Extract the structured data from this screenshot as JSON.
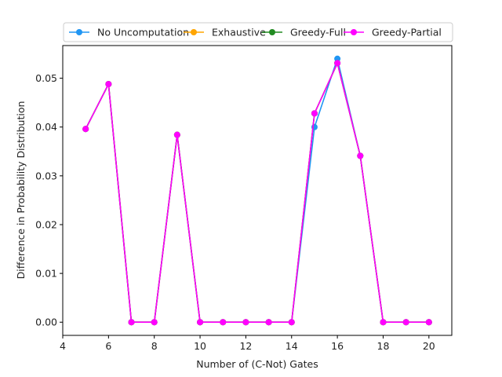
{
  "chart_data": {
    "type": "line",
    "xlabel": "Number of (C-Not) Gates",
    "ylabel": "Difference in Probability Distribution",
    "xlim": [
      4,
      21
    ],
    "ylim": [
      -0.0027,
      0.0567
    ],
    "xticks": [
      4,
      6,
      8,
      10,
      12,
      14,
      16,
      18,
      20
    ],
    "yticks": [
      0.0,
      0.01,
      0.02,
      0.03,
      0.04,
      0.05
    ],
    "ytick_labels": [
      "0.00",
      "0.01",
      "0.02",
      "0.03",
      "0.04",
      "0.05"
    ],
    "grid": false,
    "legend_placement": "top-center",
    "x": [
      5,
      6,
      7,
      8,
      9,
      10,
      11,
      12,
      13,
      14,
      15,
      16,
      17,
      18,
      19,
      20
    ],
    "series": [
      {
        "name": "No Uncomputation",
        "color": "#2196f3",
        "values": [
          0.0396,
          0.0488,
          0,
          0,
          0.0384,
          0,
          0,
          0,
          0,
          0,
          0.04,
          0.054,
          0.0341,
          0,
          0,
          0
        ]
      },
      {
        "name": "Exhaustive",
        "color": "#ffa500",
        "values": [
          0.0396,
          0.0488,
          0,
          0,
          0.0384,
          0,
          0,
          0,
          0,
          0,
          0.0428,
          0.0531,
          0.0341,
          0,
          0,
          0
        ]
      },
      {
        "name": "Greedy-Full",
        "color": "#228b22",
        "values": [
          0.0396,
          0.0488,
          0,
          0,
          0.0384,
          0,
          0,
          0,
          0,
          0,
          0.0428,
          0.0531,
          0.0341,
          0,
          0,
          0
        ]
      },
      {
        "name": "Greedy-Partial",
        "color": "#ff00ff",
        "values": [
          0.0396,
          0.0488,
          0,
          0,
          0.0384,
          0,
          0,
          0,
          0,
          0,
          0.0428,
          0.0531,
          0.0341,
          0,
          0,
          0
        ]
      }
    ]
  }
}
